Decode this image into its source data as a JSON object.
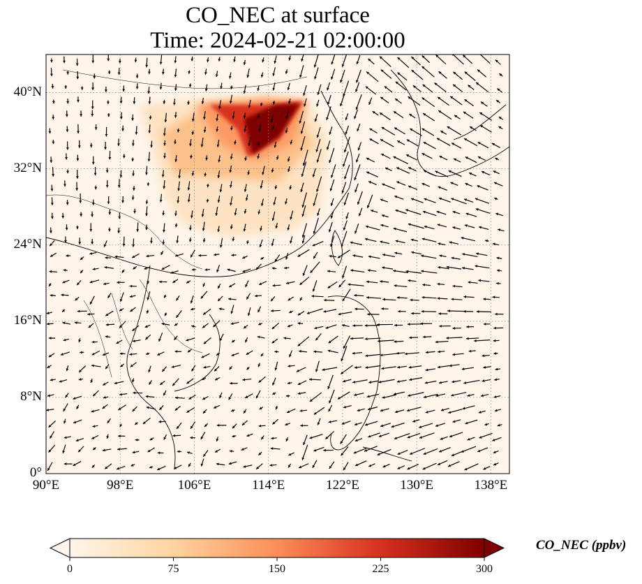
{
  "title": {
    "line1": "CO_NEC at surface",
    "line2": "Time: 2024-02-21 02:00:00"
  },
  "map": {
    "lon_range": [
      90,
      140
    ],
    "lat_range": [
      0,
      44
    ],
    "x_ticks": [
      "90°E",
      "98°E",
      "106°E",
      "114°E",
      "122°E",
      "130°E",
      "138°E"
    ],
    "y_ticks": [
      "0°",
      "8°N",
      "16°N",
      "24°N",
      "32°N",
      "40°N"
    ],
    "gridlines": true,
    "background_color": "#fff5eb",
    "features": [
      "coastlines",
      "country borders",
      "wind vectors"
    ]
  },
  "colorbar": {
    "label": "CO_NEC (ppbv)",
    "ticks": [
      "0",
      "75",
      "150",
      "225",
      "300"
    ],
    "range": [
      0,
      300
    ],
    "colormap": "OrRd",
    "colors": [
      "#fff5eb",
      "#fdd49e",
      "#fc8d59",
      "#d7301f",
      "#7f0000"
    ],
    "extend": "both"
  }
}
